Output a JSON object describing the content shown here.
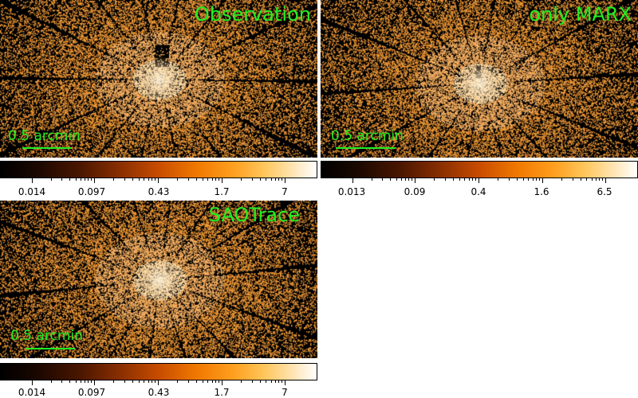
{
  "panels": [
    {
      "id": "obs",
      "title": "Observation",
      "scalebar": "0.5 arcmin",
      "colorbar_ticks": [
        "0.014",
        "0.097",
        "0.43",
        "1.7",
        "7"
      ]
    },
    {
      "id": "marx",
      "title": "only MARX",
      "scalebar": "0.5 arcmin",
      "colorbar_ticks": [
        "0.013",
        "0.09",
        "0.4",
        "1.6",
        "6.5"
      ]
    },
    {
      "id": "sao",
      "title": "SAOTrace",
      "scalebar": "0.5 arcmin",
      "colorbar_ticks": [
        "0.014",
        "0.097",
        "0.43",
        "1.7",
        "7"
      ]
    }
  ],
  "colors": {
    "label_green": "#22ee22",
    "photon_orange": "#f5a040",
    "background": "#000000"
  },
  "colormap": "heat"
}
